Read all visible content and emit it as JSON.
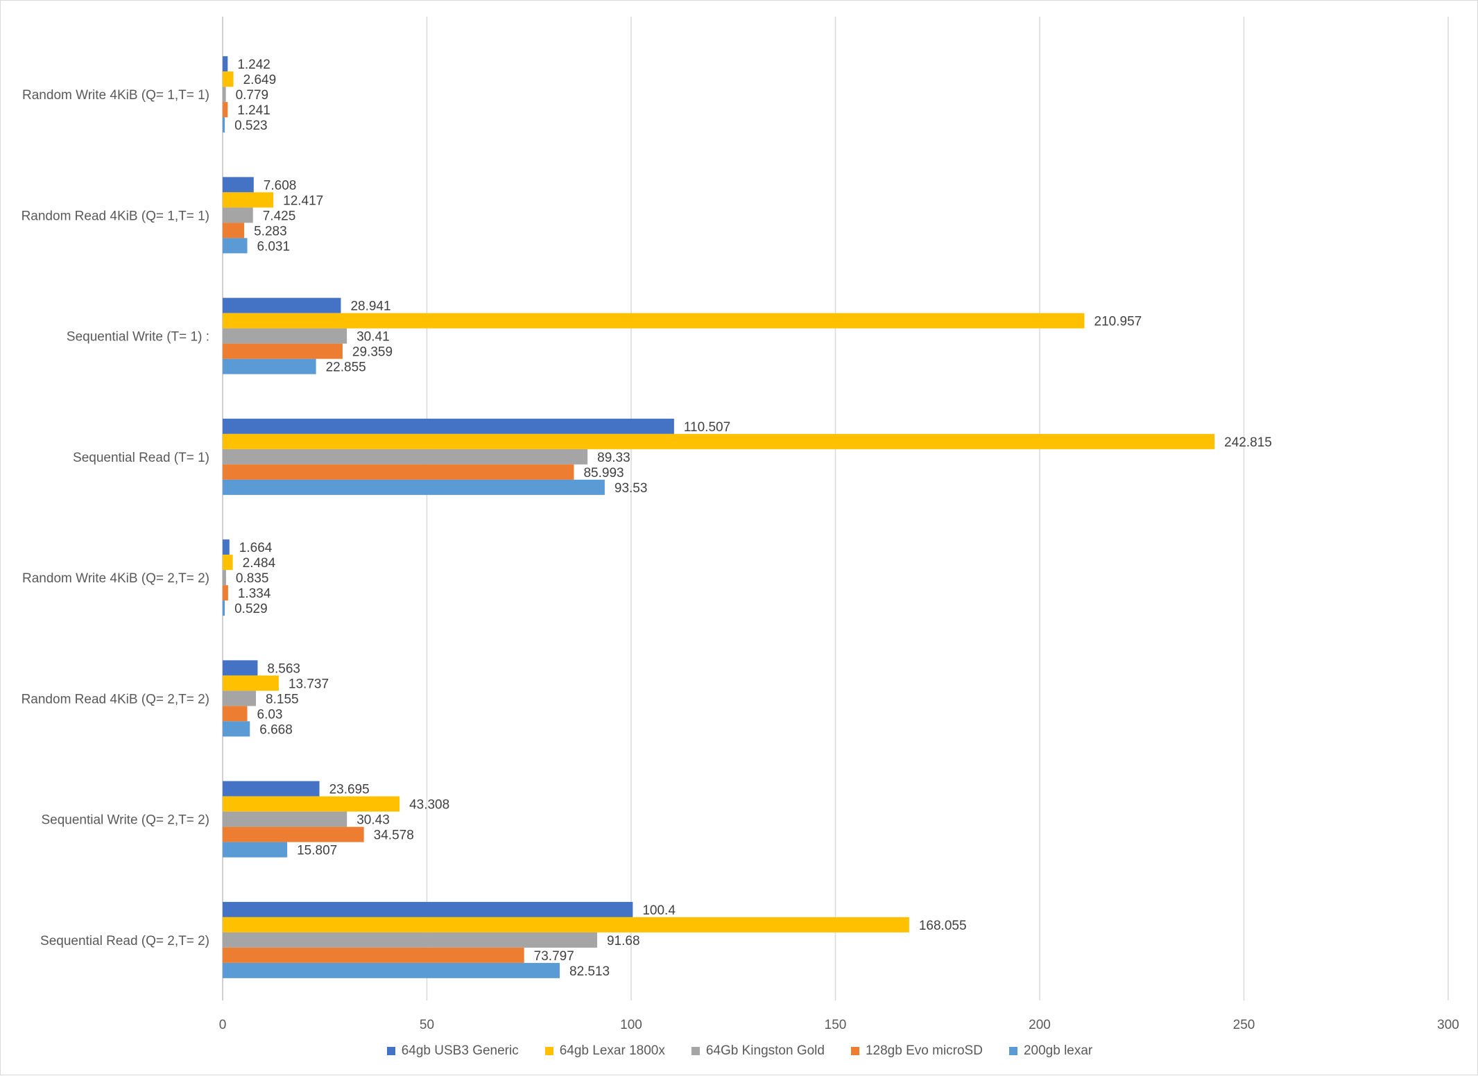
{
  "chart_data": {
    "type": "bar",
    "orientation": "horizontal",
    "title": "",
    "xlabel": "",
    "ylabel": "",
    "xlim": [
      0,
      300
    ],
    "x_ticks": [
      0,
      50,
      100,
      150,
      200,
      250,
      300
    ],
    "grid": "vertical",
    "legend_position": "bottom",
    "categories": [
      "Random Write 4KiB (Q= 1,T= 1)",
      "Random Read 4KiB (Q= 1,T= 1)",
      "Sequential Write (T= 1) :",
      "Sequential Read (T= 1)",
      "Random Write 4KiB (Q=  2,T= 2)",
      "Random Read 4KiB (Q=  2,T= 2)",
      "Sequential Write (Q=  2,T= 2)",
      "Sequential Read (Q=  2,T= 2)"
    ],
    "series": [
      {
        "name": "64gb USB3 Generic",
        "color": "#4472C4",
        "values": [
          1.242,
          7.608,
          28.941,
          110.507,
          1.664,
          8.563,
          23.695,
          100.4
        ],
        "labels": [
          "1.242",
          "7.608",
          "28.941",
          "110.507",
          "1.664",
          "8.563",
          "23.695",
          "100.4"
        ]
      },
      {
        "name": "64gb Lexar 1800x",
        "color": "#FFC000",
        "values": [
          2.649,
          12.417,
          210.957,
          242.815,
          2.484,
          13.737,
          43.308,
          168.055
        ],
        "labels": [
          "2.649",
          "12.417",
          "210.957",
          "242.815",
          "2.484",
          "13.737",
          "43.308",
          "168.055"
        ]
      },
      {
        "name": "64Gb Kingston Gold",
        "color": "#A5A5A5",
        "values": [
          0.779,
          7.425,
          30.41,
          89.33,
          0.835,
          8.155,
          30.43,
          91.68
        ],
        "labels": [
          "0.779",
          "7.425",
          "30.41",
          "89.33",
          "0.835",
          "8.155",
          "30.43",
          "91.68"
        ]
      },
      {
        "name": "128gb Evo microSD",
        "color": "#ED7D31",
        "values": [
          1.241,
          5.283,
          29.359,
          85.993,
          1.334,
          6.03,
          34.578,
          73.797
        ],
        "labels": [
          "1.241",
          "5.283",
          "29.359",
          "85.993",
          "1.334",
          "6.03",
          "34.578",
          "73.797"
        ]
      },
      {
        "name": "200gb lexar",
        "color": "#5B9BD5",
        "values": [
          0.523,
          6.031,
          22.855,
          93.53,
          0.529,
          6.668,
          15.807,
          82.513
        ],
        "labels": [
          "0.523",
          "6.031",
          "22.855",
          "93.53",
          "0.529",
          "6.668",
          "15.807",
          "82.513"
        ]
      }
    ]
  },
  "colors": {
    "gridline": "#D9D9D9",
    "axis_text": "#595959",
    "data_label": "#404040"
  }
}
